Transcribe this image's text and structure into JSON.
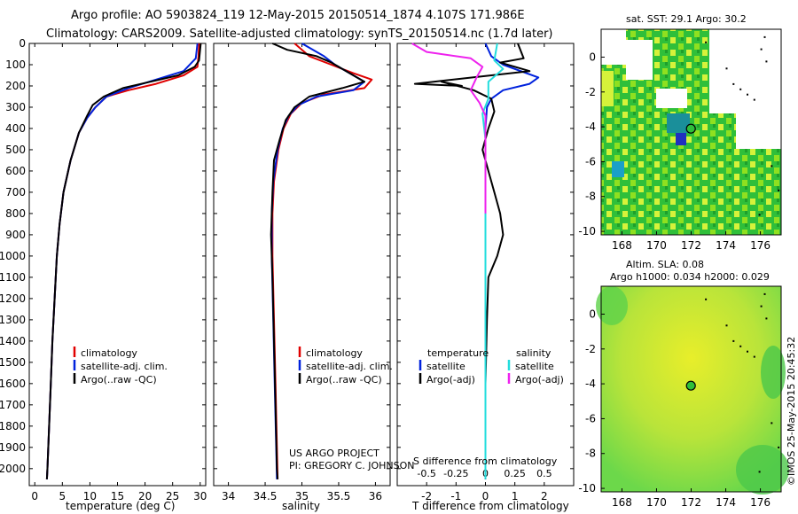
{
  "header": {
    "line1": "Argo profile: AO 5903824_119 12-May-2015 20150514_1874 4.107S 171.986E",
    "line2": "Climatology: CARS2009. Satellite-adjusted climatology: synTS_20150514.nc (1.7d later)"
  },
  "colors": {
    "climatology": "#e00000",
    "satellite": "#0022dd",
    "argo": "#000000",
    "sat_salinity": "#22dddd",
    "argo_salinity_diff": "#ee22ee"
  },
  "chart_data": [
    {
      "type": "line",
      "name": "temperature-profile",
      "xlabel": "temperature (deg C)",
      "xlim": [
        -1,
        31
      ],
      "ylim": [
        2080,
        0
      ],
      "xticks": [
        0,
        5,
        10,
        15,
        20,
        25,
        30
      ],
      "yticks": [
        0,
        100,
        200,
        300,
        400,
        500,
        600,
        700,
        800,
        900,
        1000,
        1100,
        1200,
        1300,
        1400,
        1500,
        1600,
        1700,
        1800,
        1900,
        2000
      ],
      "legend": [
        "climatology",
        "satellite-adj. clim.",
        "Argo(..raw -QC)"
      ],
      "series": [
        {
          "name": "climatology",
          "points": [
            [
              29.8,
              0
            ],
            [
              29.7,
              60
            ],
            [
              29.5,
              110
            ],
            [
              27,
              150
            ],
            [
              22,
              190
            ],
            [
              17,
              220
            ],
            [
              13,
              250
            ],
            [
              11,
              300
            ],
            [
              9.5,
              350
            ],
            [
              8,
              420
            ],
            [
              6.5,
              550
            ],
            [
              5.2,
              700
            ],
            [
              4.5,
              850
            ],
            [
              4,
              1000
            ],
            [
              3.6,
              1200
            ],
            [
              3.2,
              1400
            ],
            [
              2.9,
              1600
            ],
            [
              2.6,
              1800
            ],
            [
              2.3,
              2000
            ],
            [
              2.2,
              2050
            ]
          ]
        },
        {
          "name": "satellite-adj. clim.",
          "points": [
            [
              29.5,
              0
            ],
            [
              29.2,
              70
            ],
            [
              27,
              130
            ],
            [
              22,
              170
            ],
            [
              17,
              210
            ],
            [
              13,
              250
            ],
            [
              11,
              300
            ],
            [
              9.5,
              350
            ],
            [
              8,
              420
            ],
            [
              6.5,
              550
            ],
            [
              5.2,
              700
            ],
            [
              4.5,
              850
            ],
            [
              4,
              1000
            ],
            [
              3.6,
              1200
            ],
            [
              3.2,
              1400
            ],
            [
              2.9,
              1600
            ],
            [
              2.6,
              1800
            ],
            [
              2.3,
              2000
            ],
            [
              2.2,
              2050
            ]
          ]
        },
        {
          "name": "Argo(..raw -QC)",
          "points": [
            [
              30.1,
              0
            ],
            [
              29.8,
              80
            ],
            [
              29.0,
              110
            ],
            [
              26,
              150
            ],
            [
              21,
              180
            ],
            [
              16,
              210
            ],
            [
              12.5,
              250
            ],
            [
              10.5,
              290
            ],
            [
              9.5,
              340
            ],
            [
              8,
              420
            ],
            [
              6.5,
              550
            ],
            [
              5.2,
              700
            ],
            [
              4.5,
              850
            ],
            [
              4,
              1000
            ],
            [
              3.6,
              1200
            ],
            [
              3.2,
              1400
            ],
            [
              2.9,
              1600
            ],
            [
              2.6,
              1800
            ],
            [
              2.3,
              2000
            ],
            [
              2.2,
              2050
            ]
          ]
        }
      ]
    },
    {
      "type": "line",
      "name": "salinity-profile",
      "xlabel": "salinity",
      "xlim": [
        33.8,
        36.2
      ],
      "ylim": [
        2080,
        0
      ],
      "xticks": [
        34,
        34.5,
        35,
        35.5,
        36
      ],
      "legend": [
        "climatology",
        "satellite-adj. clim.",
        "Argo(..raw -QC)"
      ],
      "annotation": [
        "US ARGO PROJECT",
        "PI: GREGORY C. JOHNSON"
      ],
      "series": [
        {
          "name": "climatology",
          "points": [
            [
              34.9,
              0
            ],
            [
              35.1,
              60
            ],
            [
              35.4,
              100
            ],
            [
              35.7,
              140
            ],
            [
              35.95,
              170
            ],
            [
              35.85,
              210
            ],
            [
              35.3,
              240
            ],
            [
              35.0,
              280
            ],
            [
              34.85,
              330
            ],
            [
              34.75,
              400
            ],
            [
              34.68,
              500
            ],
            [
              34.62,
              650
            ],
            [
              34.6,
              800
            ],
            [
              34.6,
              1000
            ],
            [
              34.62,
              1300
            ],
            [
              34.64,
              1600
            ],
            [
              34.66,
              1900
            ],
            [
              34.67,
              2050
            ]
          ]
        },
        {
          "name": "satellite-adj. clim.",
          "points": [
            [
              35.0,
              0
            ],
            [
              35.3,
              60
            ],
            [
              35.45,
              100
            ],
            [
              35.65,
              140
            ],
            [
              35.85,
              180
            ],
            [
              35.7,
              220
            ],
            [
              35.2,
              250
            ],
            [
              34.95,
              290
            ],
            [
              34.82,
              340
            ],
            [
              34.74,
              400
            ],
            [
              34.67,
              500
            ],
            [
              34.61,
              650
            ],
            [
              34.59,
              800
            ],
            [
              34.59,
              1000
            ],
            [
              34.61,
              1300
            ],
            [
              34.63,
              1600
            ],
            [
              34.65,
              1900
            ],
            [
              34.66,
              2050
            ]
          ]
        },
        {
          "name": "Argo(..raw -QC)",
          "points": [
            [
              34.6,
              0
            ],
            [
              34.8,
              30
            ],
            [
              35.2,
              60
            ],
            [
              35.4,
              90
            ],
            [
              35.6,
              130
            ],
            [
              35.85,
              180
            ],
            [
              35.55,
              210
            ],
            [
              35.1,
              250
            ],
            [
              34.9,
              300
            ],
            [
              34.78,
              360
            ],
            [
              34.7,
              450
            ],
            [
              34.62,
              550
            ],
            [
              34.6,
              700
            ],
            [
              34.58,
              900
            ],
            [
              34.6,
              1100
            ],
            [
              34.62,
              1400
            ],
            [
              34.64,
              1700
            ],
            [
              34.66,
              2000
            ],
            [
              34.67,
              2050
            ]
          ]
        }
      ]
    },
    {
      "type": "line",
      "name": "difference-profile",
      "xlabel": "T difference from climatology",
      "top_label": "S difference from climatology",
      "top_ticks": [
        -0.5,
        -0.25,
        0,
        0.25,
        0.5
      ],
      "xlim": [
        -3,
        3
      ],
      "ylim": [
        2080,
        0
      ],
      "xticks": [
        -2,
        -1,
        0,
        1,
        2
      ],
      "legend": {
        "temperature": "temperature",
        "salinity": "salinity",
        "items": [
          "satellite",
          "Argo(-adj)",
          "satellite",
          "Argo(-adj)"
        ]
      },
      "series": [
        {
          "name": "temperature satellite",
          "points": [
            [
              0,
              0
            ],
            [
              0.2,
              60
            ],
            [
              0.6,
              100
            ],
            [
              1.8,
              160
            ],
            [
              1.5,
              190
            ],
            [
              0.6,
              220
            ],
            [
              0.2,
              260
            ],
            [
              0.05,
              300
            ],
            [
              0,
              400
            ],
            [
              0,
              600
            ],
            [
              0,
              900
            ],
            [
              0,
              1300
            ],
            [
              0,
              1700
            ],
            [
              0,
              2050
            ]
          ]
        },
        {
          "name": "temperature Argo(-adj)",
          "points": [
            [
              1.1,
              0
            ],
            [
              1.3,
              70
            ],
            [
              0.5,
              90
            ],
            [
              1.5,
              130
            ],
            [
              -2.4,
              190
            ],
            [
              -0.8,
              200
            ],
            [
              -1.5,
              180
            ],
            [
              -0.4,
              220
            ],
            [
              0.2,
              260
            ],
            [
              0.3,
              320
            ],
            [
              0.1,
              400
            ],
            [
              -0.1,
              500
            ],
            [
              0.1,
              600
            ],
            [
              0.3,
              700
            ],
            [
              0.5,
              800
            ],
            [
              0.6,
              900
            ],
            [
              0.4,
              1000
            ],
            [
              0.1,
              1100
            ],
            [
              0.05,
              1300
            ],
            [
              0,
              1600
            ],
            [
              0,
              1900
            ],
            [
              0,
              2050
            ]
          ]
        },
        {
          "name": "salinity satellite",
          "points": [
            [
              0.4,
              0
            ],
            [
              0.3,
              80
            ],
            [
              0.6,
              120
            ],
            [
              0.1,
              180
            ],
            [
              0.1,
              260
            ],
            [
              -0.1,
              330
            ],
            [
              0,
              450
            ],
            [
              0,
              700
            ],
            [
              0,
              1000
            ],
            [
              0,
              1400
            ],
            [
              0,
              1800
            ],
            [
              0,
              2050
            ]
          ]
        },
        {
          "name": "salinity Argo(-adj)",
          "points": [
            [
              -2.5,
              0
            ],
            [
              -2.0,
              40
            ],
            [
              -0.5,
              70
            ],
            [
              -0.1,
              110
            ],
            [
              -0.3,
              160
            ],
            [
              -0.5,
              220
            ],
            [
              -0.2,
              280
            ],
            [
              0,
              340
            ],
            [
              0,
              450
            ],
            [
              0,
              650
            ],
            [
              0,
              800
            ]
          ]
        }
      ]
    },
    {
      "type": "heatmap",
      "name": "sst-map",
      "title": "sat. SST: 29.1  Argo: 30.2",
      "xticks": [
        168,
        170,
        172,
        174,
        176
      ],
      "yticks": [
        0,
        -2,
        -4,
        -6,
        -8,
        -10
      ],
      "xlim": [
        166.8,
        177.2
      ],
      "ylim": [
        -10.2,
        1.6
      ],
      "float_position": [
        171.986,
        -4.107
      ]
    },
    {
      "type": "heatmap",
      "name": "sla-map",
      "title": [
        "Altim. SLA: 0.08",
        "Argo h1000: 0.034 h2000: 0.029"
      ],
      "xticks": [
        168,
        170,
        172,
        174,
        176
      ],
      "yticks": [
        0,
        -2,
        -4,
        -6,
        -8,
        -10
      ],
      "xlim": [
        166.8,
        177.2
      ],
      "ylim": [
        -10.2,
        1.6
      ],
      "float_position": [
        171.986,
        -4.107
      ]
    }
  ],
  "credit": "©IMOS 25-May-2015 20:45:32"
}
